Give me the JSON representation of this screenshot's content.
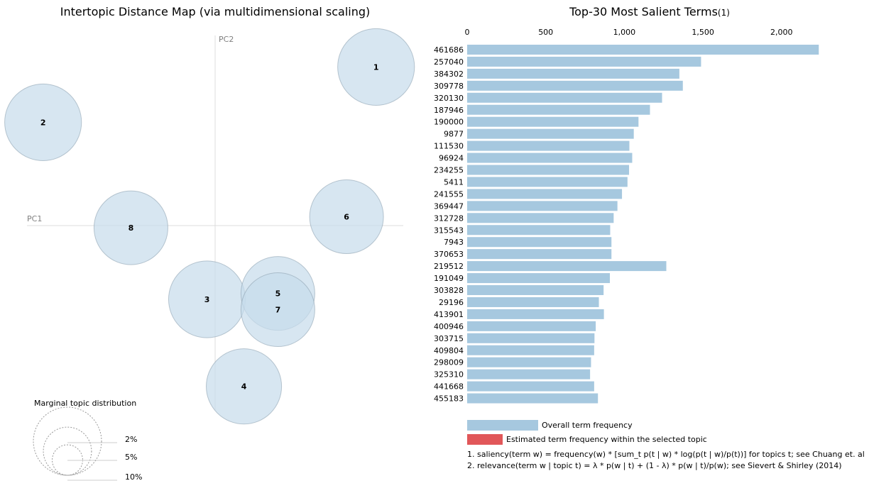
{
  "chart_data": [
    {
      "type": "scatter",
      "title": "Intertopic Distance Map (via multidimensional scaling)",
      "xlabel": "PC1",
      "ylabel": "PC2",
      "points": [
        {
          "label": "1",
          "x": 0.218,
          "y": 0.215,
          "r": 0.052
        },
        {
          "label": "2",
          "x": -0.233,
          "y": 0.14,
          "r": 0.052
        },
        {
          "label": "3",
          "x": -0.011,
          "y": -0.1,
          "r": 0.052
        },
        {
          "label": "4",
          "x": 0.039,
          "y": -0.218,
          "r": 0.051
        },
        {
          "label": "5",
          "x": 0.085,
          "y": -0.092,
          "r": 0.05
        },
        {
          "label": "6",
          "x": 0.178,
          "y": 0.012,
          "r": 0.05
        },
        {
          "label": "7",
          "x": 0.085,
          "y": -0.114,
          "r": 0.05
        },
        {
          "label": "8",
          "x": -0.114,
          "y": -0.003,
          "r": 0.05
        }
      ],
      "xlim": [
        -0.29,
        0.29
      ],
      "ylim": [
        -0.27,
        0.27
      ],
      "circle_color": "#c6dbeb",
      "circle_opacity": 0.7,
      "circle_stroke": "#8fa3b3",
      "marginal": {
        "title": "Marginal topic distribution",
        "entries": [
          {
            "label": "2%",
            "value": 0.02
          },
          {
            "label": "5%",
            "value": 0.05
          },
          {
            "label": "10%",
            "value": 0.1
          }
        ]
      }
    },
    {
      "type": "bar",
      "orientation": "horizontal",
      "title": "Top-30 Most Salient Terms",
      "title_superscript": "(1)",
      "xlim": [
        0,
        2300
      ],
      "xticks": [
        0,
        500,
        1000,
        1500,
        2000
      ],
      "xtick_labels": [
        "0",
        "500",
        "1,000",
        "1,500",
        "2,000"
      ],
      "bar_color": "#a6c8df",
      "categories": [
        "461686",
        "257040",
        "384302",
        "309778",
        "320130",
        "187946",
        "190000",
        "9877",
        "111530",
        "96924",
        "234255",
        "5411",
        "241555",
        "369447",
        "312728",
        "315543",
        "7943",
        "370653",
        "219512",
        "191049",
        "303828",
        "29196",
        "413901",
        "400946",
        "303715",
        "409804",
        "298009",
        "325310",
        "441668",
        "455183"
      ],
      "values": [
        2237,
        1488,
        1350,
        1372,
        1240,
        1163,
        1090,
        1060,
        1032,
        1050,
        1030,
        1020,
        985,
        956,
        932,
        910,
        918,
        918,
        1267,
        908,
        868,
        838,
        870,
        818,
        810,
        808,
        788,
        782,
        808,
        832
      ],
      "legend": [
        {
          "label": "Overall term frequency",
          "color": "#a6c8df"
        },
        {
          "label": "Estimated term frequency within the selected topic",
          "color": "#e15759"
        }
      ],
      "footnotes": [
        "1. saliency(term w) = frequency(w) * [sum_t p(t | w) * log(p(t | w)/p(t))] for topics t; see Chuang et. al",
        "2. relevance(term w | topic t) = λ * p(w | t) + (1 - λ) * p(w | t)/p(w); see Sievert & Shirley (2014)"
      ]
    }
  ]
}
